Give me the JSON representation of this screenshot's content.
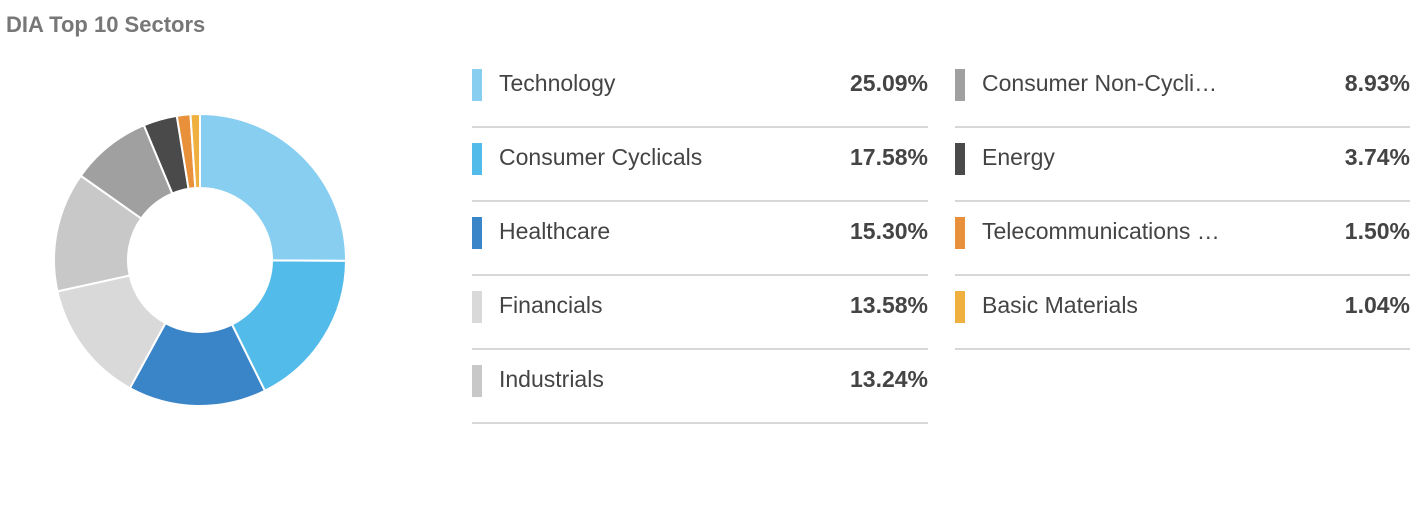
{
  "chart_data": {
    "type": "donut",
    "title": "DIA Top 10 Sectors",
    "categories": [
      "Technology",
      "Consumer Cyclicals",
      "Healthcare",
      "Financials",
      "Industrials",
      "Consumer Non-Cycli…",
      "Energy",
      "Telecommunications …",
      "Basic Materials"
    ],
    "values": [
      25.09,
      17.58,
      15.3,
      13.58,
      13.24,
      8.93,
      3.74,
      1.5,
      1.04
    ],
    "value_labels": [
      "25.09%",
      "17.58%",
      "15.30%",
      "13.58%",
      "13.24%",
      "8.93%",
      "3.74%",
      "1.50%",
      "1.04%"
    ],
    "colors": [
      "#87cef0",
      "#52bbea",
      "#3a84c8",
      "#d9d9d9",
      "#c8c8c8",
      "#a0a0a0",
      "#4a4a4a",
      "#e8913a",
      "#f0b040"
    ]
  }
}
